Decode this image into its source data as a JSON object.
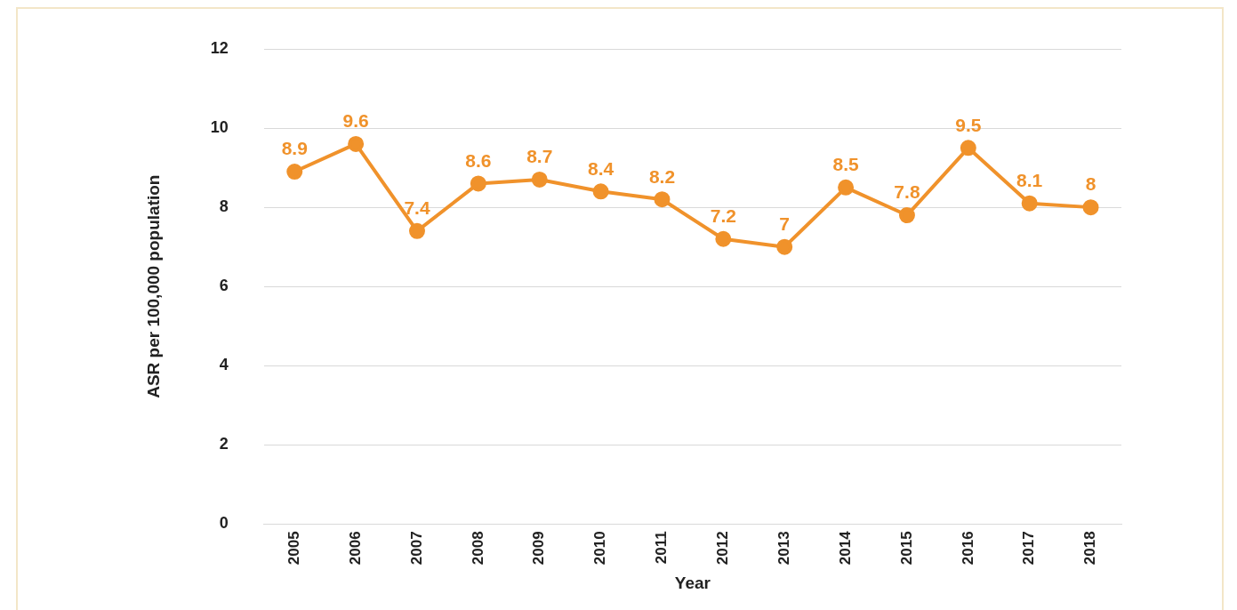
{
  "chart_data": {
    "type": "line",
    "xlabel": "Year",
    "ylabel": "ASR per 100,000 population",
    "categories": [
      "2005",
      "2006",
      "2007",
      "2008",
      "2009",
      "2010",
      "2011",
      "2012",
      "2013",
      "2014",
      "2015",
      "2016",
      "2017",
      "2018"
    ],
    "series": [
      {
        "color": "#f0922b",
        "values": [
          8.9,
          9.6,
          7.4,
          8.6,
          8.7,
          8.4,
          8.2,
          7.2,
          7,
          8.5,
          7.8,
          9.5,
          8.1,
          8
        ]
      }
    ],
    "ylim": [
      0,
      12
    ],
    "yticks": [
      0,
      2,
      4,
      6,
      8,
      10,
      12
    ],
    "grid": "y",
    "legend": false,
    "marker": "circle",
    "line_style": "solid",
    "data_labels": true
  }
}
